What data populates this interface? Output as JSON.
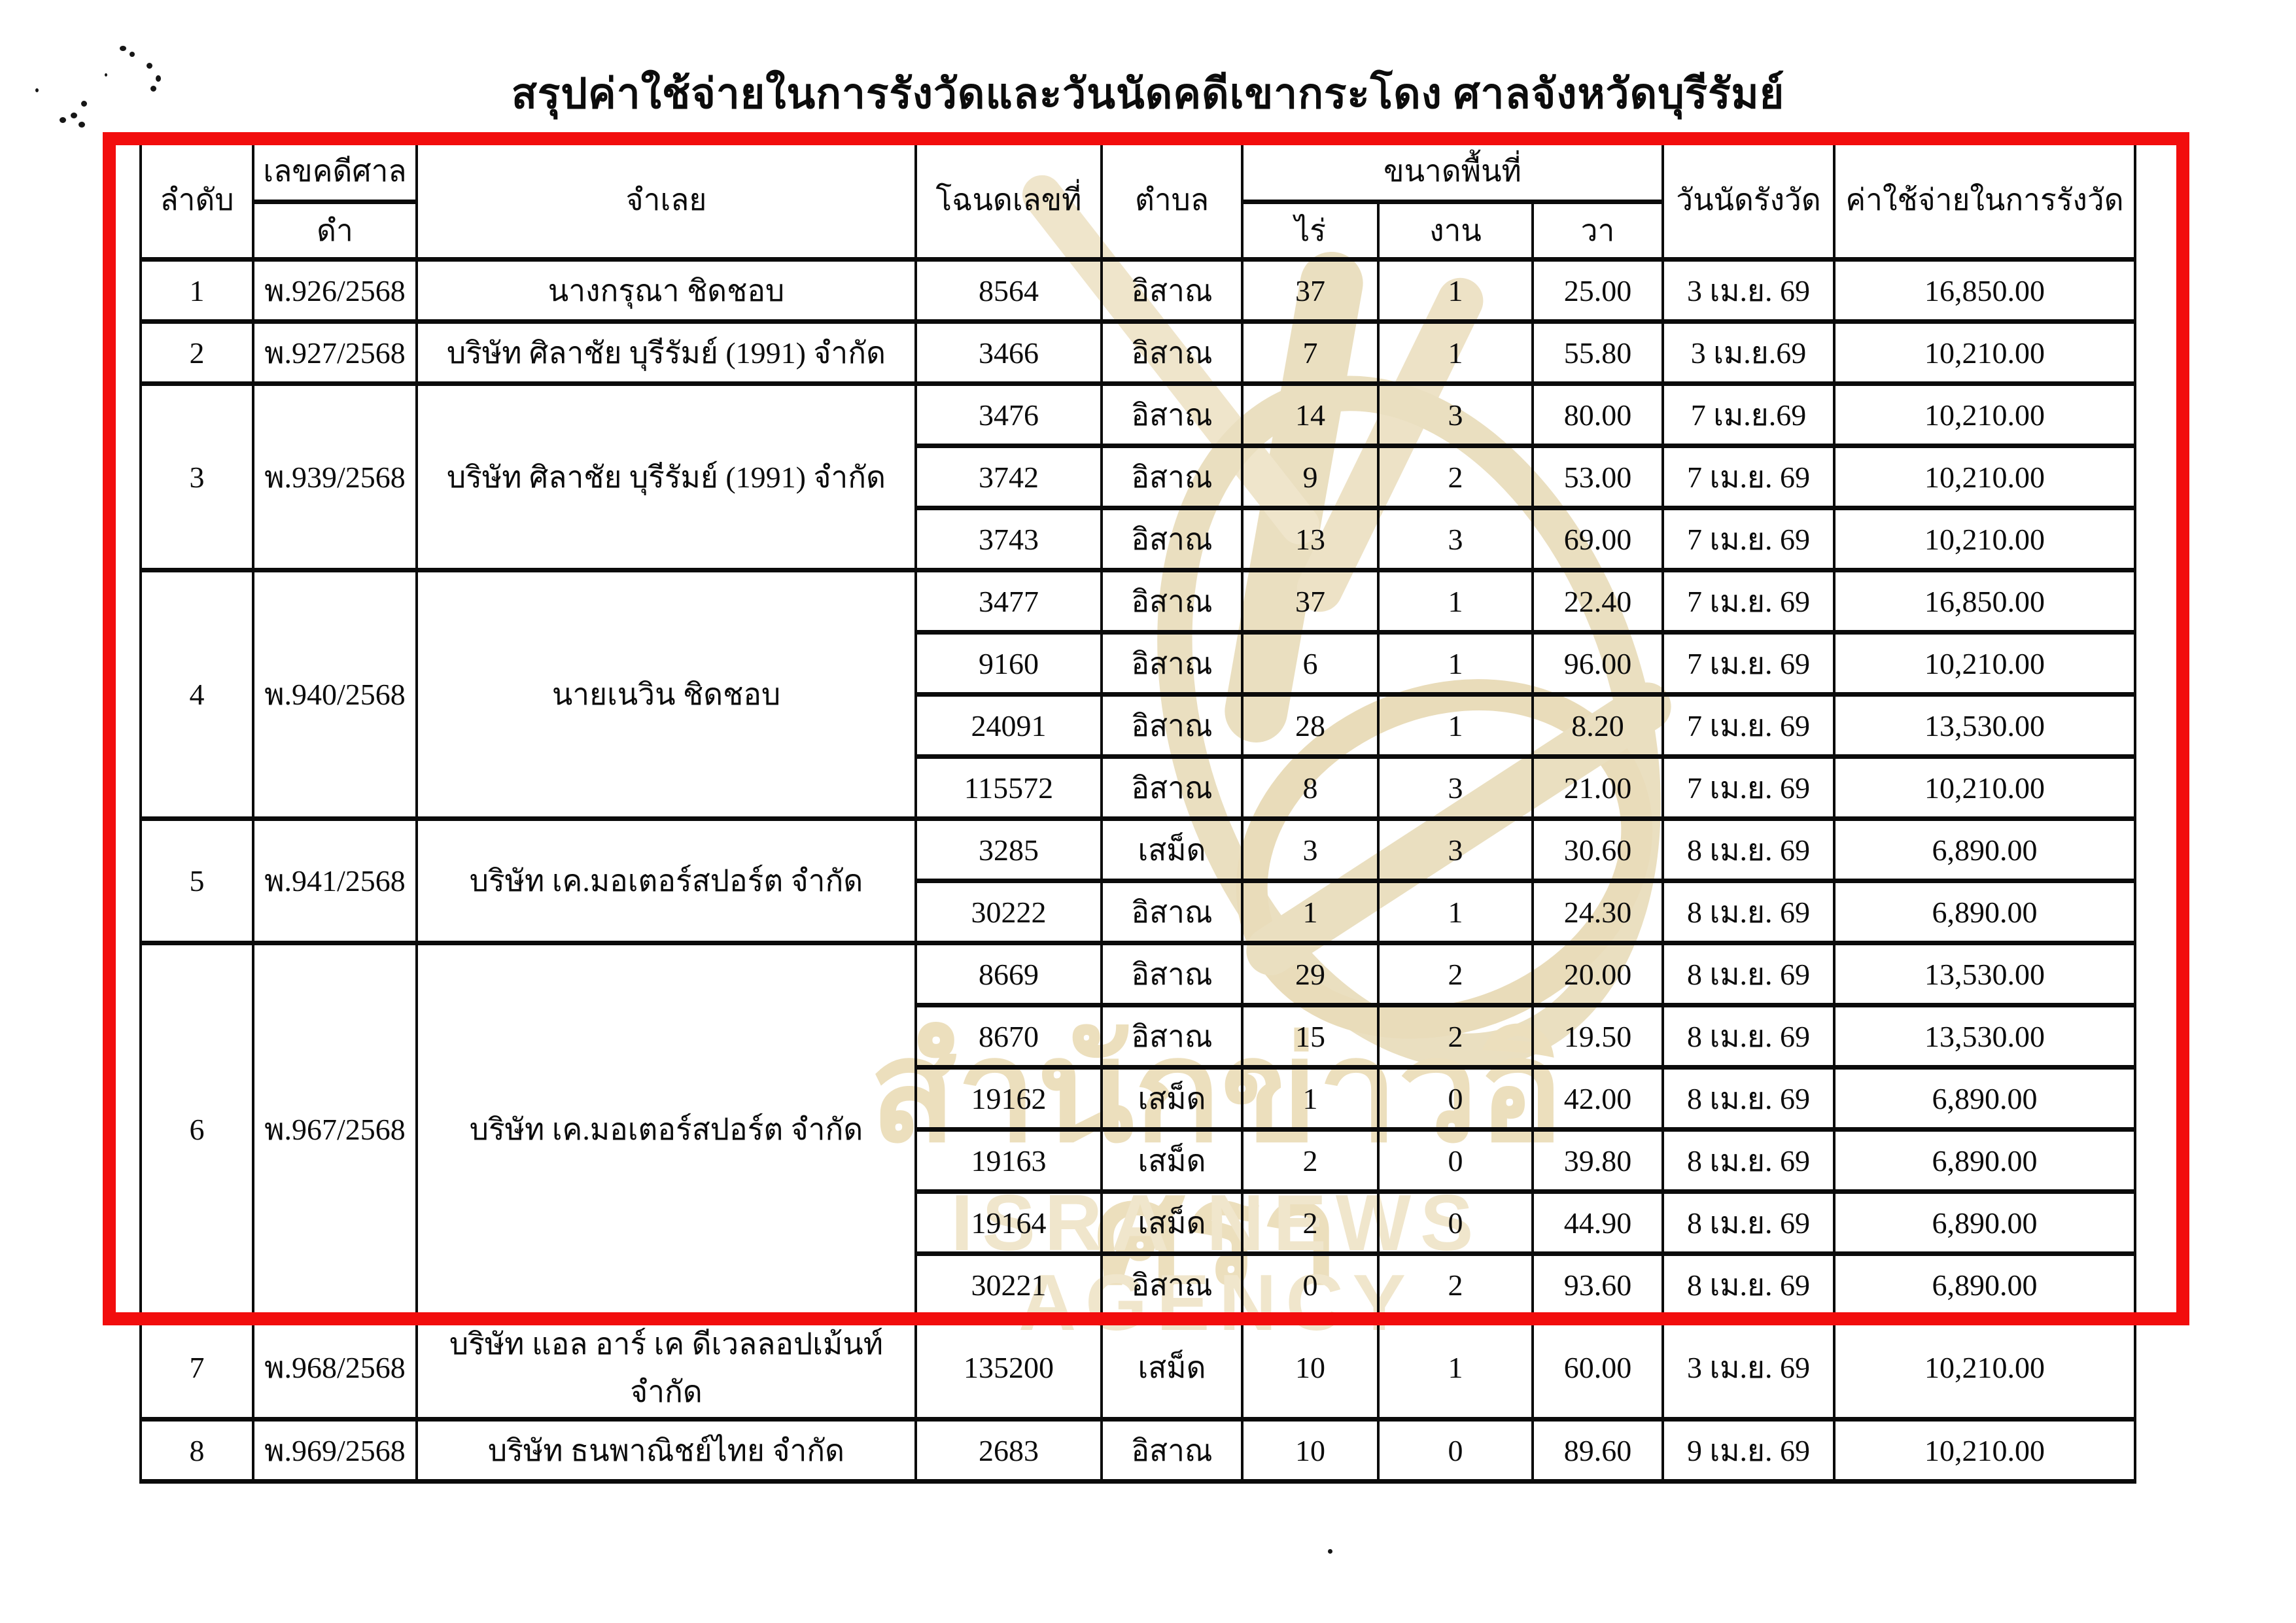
{
  "title": "สรุปค่าใช้จ่ายในการรังวัดและวันนัดคดีเขากระโดง ศาลจังหวัดบุรีรัมย์",
  "colors": {
    "highlight_box": "#f20d0d",
    "watermark": "#ecdfbd",
    "ink": "#0b0b0b",
    "paper": "#ffffff"
  },
  "watermark": {
    "thai": "สำนักข่าวอิศรา",
    "latin": "ISRA NEWS AGENCY"
  },
  "header": {
    "order": "ลำดับ",
    "case_no_group": "เลขคดีศาล",
    "case_no_sub": "ดำ",
    "defendant": "จำเลย",
    "deed_no": "โฉนดเลขที่",
    "subdistrict": "ตำบล",
    "area_group": "ขนาดพื้นที่",
    "rai": "ไร่",
    "ngan": "งาน",
    "wa": "วา",
    "survey_date": "วันนัดรังวัด",
    "expense": "ค่าใช้จ่ายในการรังวัด"
  },
  "cases": [
    {
      "no": "1",
      "case_no": "พ.926/2568",
      "defendant": "นางกรุณา  ชิดชอบ",
      "parcels": [
        {
          "deed": "8564",
          "subdistrict": "อิสาณ",
          "rai": "37",
          "ngan": "1",
          "wa": "25.00",
          "date": "3 เม.ย. 69",
          "expense": "16,850.00"
        }
      ]
    },
    {
      "no": "2",
      "case_no": "พ.927/2568",
      "defendant": "บริษัท ศิลาชัย บุรีรัมย์ (1991) จำกัด",
      "parcels": [
        {
          "deed": "3466",
          "subdistrict": "อิสาณ",
          "rai": "7",
          "ngan": "1",
          "wa": "55.80",
          "date": "3 เม.ย.69",
          "expense": "10,210.00"
        }
      ]
    },
    {
      "no": "3",
      "case_no": "พ.939/2568",
      "defendant": "บริษัท ศิลาชัย บุรีรัมย์ (1991) จำกัด",
      "parcels": [
        {
          "deed": "3476",
          "subdistrict": "อิสาณ",
          "rai": "14",
          "ngan": "3",
          "wa": "80.00",
          "date": "7 เม.ย.69",
          "expense": "10,210.00"
        },
        {
          "deed": "3742",
          "subdistrict": "อิสาณ",
          "rai": "9",
          "ngan": "2",
          "wa": "53.00",
          "date": "7 เม.ย. 69",
          "expense": "10,210.00"
        },
        {
          "deed": "3743",
          "subdistrict": "อิสาณ",
          "rai": "13",
          "ngan": "3",
          "wa": "69.00",
          "date": "7 เม.ย. 69",
          "expense": "10,210.00"
        }
      ]
    },
    {
      "no": "4",
      "case_no": "พ.940/2568",
      "defendant": "นายเนวิน  ชิดชอบ",
      "parcels": [
        {
          "deed": "3477",
          "subdistrict": "อิสาณ",
          "rai": "37",
          "ngan": "1",
          "wa": "22.40",
          "date": "7 เม.ย. 69",
          "expense": "16,850.00"
        },
        {
          "deed": "9160",
          "subdistrict": "อิสาณ",
          "rai": "6",
          "ngan": "1",
          "wa": "96.00",
          "date": "7 เม.ย. 69",
          "expense": "10,210.00"
        },
        {
          "deed": "24091",
          "subdistrict": "อิสาณ",
          "rai": "28",
          "ngan": "1",
          "wa": "8.20",
          "date": "7 เม.ย. 69",
          "expense": "13,530.00"
        },
        {
          "deed": "115572",
          "subdistrict": "อิสาณ",
          "rai": "8",
          "ngan": "3",
          "wa": "21.00",
          "date": "7 เม.ย. 69",
          "expense": "10,210.00"
        }
      ]
    },
    {
      "no": "5",
      "case_no": "พ.941/2568",
      "defendant": "บริษัท เค.มอเตอร์สปอร์ต จำกัด",
      "parcels": [
        {
          "deed": "3285",
          "subdistrict": "เสม็ด",
          "rai": "3",
          "ngan": "3",
          "wa": "30.60",
          "date": "8 เม.ย. 69",
          "expense": "6,890.00"
        },
        {
          "deed": "30222",
          "subdistrict": "อิสาณ",
          "rai": "1",
          "ngan": "1",
          "wa": "24.30",
          "date": "8 เม.ย. 69",
          "expense": "6,890.00"
        }
      ]
    },
    {
      "no": "6",
      "case_no": "พ.967/2568",
      "defendant": "บริษัท เค.มอเตอร์สปอร์ต จำกัด",
      "parcels": [
        {
          "deed": "8669",
          "subdistrict": "อิสาณ",
          "rai": "29",
          "ngan": "2",
          "wa": "20.00",
          "date": "8 เม.ย. 69",
          "expense": "13,530.00"
        },
        {
          "deed": "8670",
          "subdistrict": "อิสาณ",
          "rai": "15",
          "ngan": "2",
          "wa": "19.50",
          "date": "8 เม.ย. 69",
          "expense": "13,530.00"
        },
        {
          "deed": "19162",
          "subdistrict": "เสม็ด",
          "rai": "1",
          "ngan": "0",
          "wa": "42.00",
          "date": "8 เม.ย. 69",
          "expense": "6,890.00"
        },
        {
          "deed": "19163",
          "subdistrict": "เสม็ด",
          "rai": "2",
          "ngan": "0",
          "wa": "39.80",
          "date": "8 เม.ย. 69",
          "expense": "6,890.00"
        },
        {
          "deed": "19164",
          "subdistrict": "เสม็ด",
          "rai": "2",
          "ngan": "0",
          "wa": "44.90",
          "date": "8 เม.ย. 69",
          "expense": "6,890.00"
        },
        {
          "deed": "30221",
          "subdistrict": "อิสาณ",
          "rai": "0",
          "ngan": "2",
          "wa": "93.60",
          "date": "8 เม.ย. 69",
          "expense": "6,890.00"
        }
      ]
    },
    {
      "no": "7",
      "case_no": "พ.968/2568",
      "defendant": "บริษัท แอล อาร์ เค ดีเวลลอปเม้นท์ จำกัด",
      "tall": true,
      "date_low": true,
      "parcels": [
        {
          "deed": "135200",
          "subdistrict": "เสม็ด",
          "rai": "10",
          "ngan": "1",
          "wa": "60.00",
          "date": "3 เม.ย. 69",
          "expense": "10,210.00"
        }
      ]
    },
    {
      "no": "8",
      "case_no": "พ.969/2568",
      "defendant": "บริษัท ธนพาณิชย์ไทย จำกัด",
      "parcels": [
        {
          "deed": "2683",
          "subdistrict": "อิสาณ",
          "rai": "10",
          "ngan": "0",
          "wa": "89.60",
          "date": "9 เม.ย. 69",
          "expense": "10,210.00"
        }
      ]
    }
  ]
}
